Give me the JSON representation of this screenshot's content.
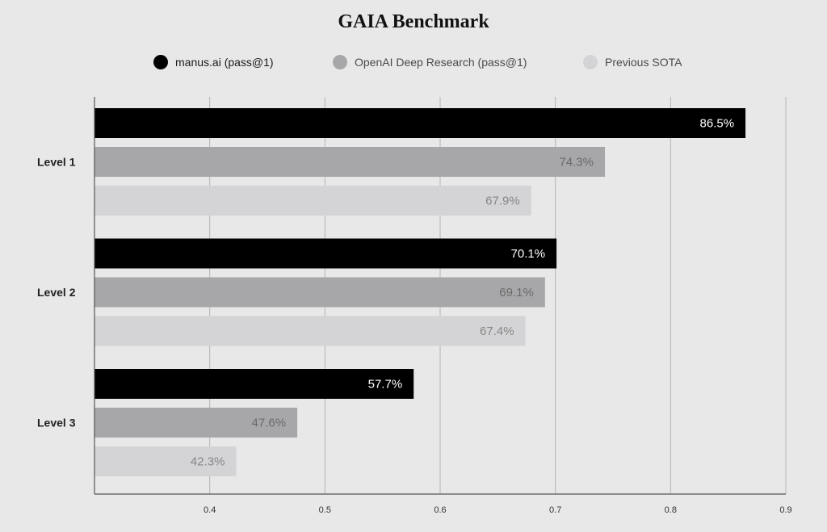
{
  "chart_data": {
    "type": "bar",
    "orientation": "horizontal",
    "title": "GAIA Benchmark",
    "categories": [
      "Level 1",
      "Level 2",
      "Level 3"
    ],
    "series": [
      {
        "name": "manus.ai (pass@1)",
        "color": "#000000",
        "label_color": "#ffffff",
        "values": [
          0.865,
          0.701,
          0.577
        ],
        "labels": [
          "86.5%",
          "70.1%",
          "57.7%"
        ]
      },
      {
        "name": "OpenAI Deep Research (pass@1)",
        "color": "#a7a7a9",
        "label_color": "#6a6a6a",
        "values": [
          0.743,
          0.691,
          0.476
        ],
        "labels": [
          "74.3%",
          "69.1%",
          "47.6%"
        ]
      },
      {
        "name": "Previous SOTA",
        "color": "#d4d4d6",
        "label_color": "#858585",
        "values": [
          0.679,
          0.674,
          0.423
        ],
        "labels": [
          "67.9%",
          "67.4%",
          "42.3%"
        ]
      }
    ],
    "xlim": [
      0.3,
      0.9
    ],
    "xticks": [
      0.4,
      0.5,
      0.6,
      0.7,
      0.8,
      0.9
    ],
    "xtick_labels": [
      "0.4",
      "0.5",
      "0.6",
      "0.7",
      "0.8",
      "0.9"
    ],
    "grid": true,
    "legend_position": "top-center",
    "xlabel": "",
    "ylabel": ""
  }
}
